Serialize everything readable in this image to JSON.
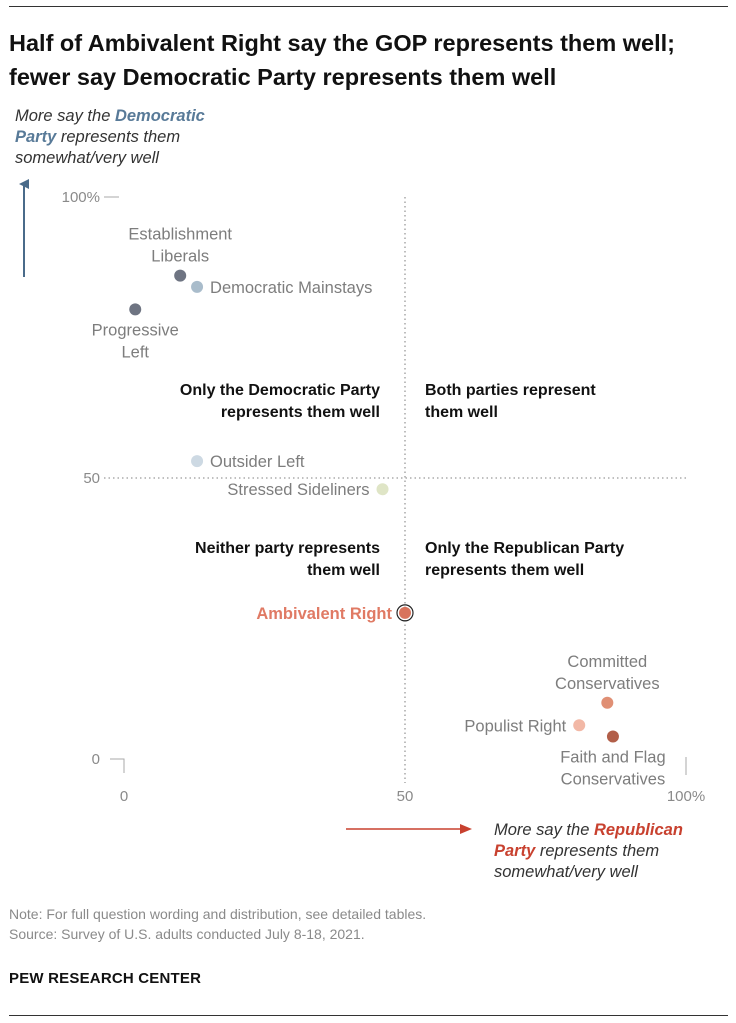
{
  "title": "Half of Ambivalent Right say the GOP represents them well; fewer say Democratic Party represents them well",
  "y_axis_note": {
    "line1_pre": "More say the ",
    "line1_em": "Democratic",
    "line2_em": "Party",
    "line2_post": " represents them",
    "line3": "somewhat/very well"
  },
  "x_axis_note": {
    "line1_pre": "More say the ",
    "line1_em": "Republican",
    "line2_em": "Party",
    "line2_post": " represents them",
    "line3": "somewhat/very well"
  },
  "quadrant_labels": {
    "top_left": [
      "Only the Democratic Party",
      "represents them well"
    ],
    "top_right": [
      "Both parties represent",
      "them well"
    ],
    "bottom_left": [
      "Neither party represents",
      "them well"
    ],
    "bottom_right": [
      "Only the Republican Party",
      "represents them well"
    ]
  },
  "note_line1": "Note: For full question wording and distribution, see detailed tables.",
  "note_line2": "Source: Survey of U.S. adults conducted July 8-18, 2021.",
  "brand": "PEW RESEARCH CENTER",
  "colors": {
    "dem_arrow": "#4a6b8a",
    "rep_arrow": "#c8412f",
    "highlight_label": "#e07a64",
    "axis_text": "#8a8a8a",
    "point_label": "#7d7d7d"
  },
  "chart_data": {
    "type": "scatter",
    "xlabel": "",
    "ylabel": "",
    "xlim": [
      0,
      100
    ],
    "ylim": [
      0,
      100
    ],
    "x_ticks": [
      "0",
      "50",
      "100%"
    ],
    "y_ticks": [
      "0",
      "50",
      "100%"
    ],
    "reference_lines": {
      "x": 50,
      "y": 50
    },
    "grid": false,
    "points": [
      {
        "name": "Establishment Liberals",
        "label_lines": [
          "Establishment",
          "Liberals"
        ],
        "x": 10,
        "y": 86,
        "color": "#6e7482",
        "label_pos": "above"
      },
      {
        "name": "Democratic Mainstays",
        "label_lines": [
          "Democratic Mainstays"
        ],
        "x": 13,
        "y": 84,
        "color": "#a9bccb",
        "label_pos": "right"
      },
      {
        "name": "Progressive Left",
        "label_lines": [
          "Progressive",
          "Left"
        ],
        "x": 2,
        "y": 80,
        "color": "#6e7482",
        "label_pos": "below"
      },
      {
        "name": "Outsider Left",
        "label_lines": [
          "Outsider Left"
        ],
        "x": 13,
        "y": 53,
        "color": "#cdd9e3",
        "label_pos": "right"
      },
      {
        "name": "Stressed Sideliners",
        "label_lines": [
          "Stressed Sideliners"
        ],
        "x": 46,
        "y": 48,
        "color": "#dfe5c6",
        "label_pos": "left"
      },
      {
        "name": "Ambivalent Right",
        "label_lines": [
          "Ambivalent Right"
        ],
        "x": 50,
        "y": 26,
        "color": "#d8735c",
        "label_pos": "left",
        "highlight": true
      },
      {
        "name": "Committed Conservatives",
        "label_lines": [
          "Committed",
          "Conservatives"
        ],
        "x": 86,
        "y": 10,
        "color": "#e08f74",
        "label_pos": "above"
      },
      {
        "name": "Populist Right",
        "label_lines": [
          "Populist Right"
        ],
        "x": 81,
        "y": 6,
        "color": "#f2b8a6",
        "label_pos": "left"
      },
      {
        "name": "Faith and Flag Conservatives",
        "label_lines": [
          "Faith and Flag",
          "Conservatives"
        ],
        "x": 87,
        "y": 4,
        "color": "#b25f49",
        "label_pos": "below"
      }
    ]
  }
}
